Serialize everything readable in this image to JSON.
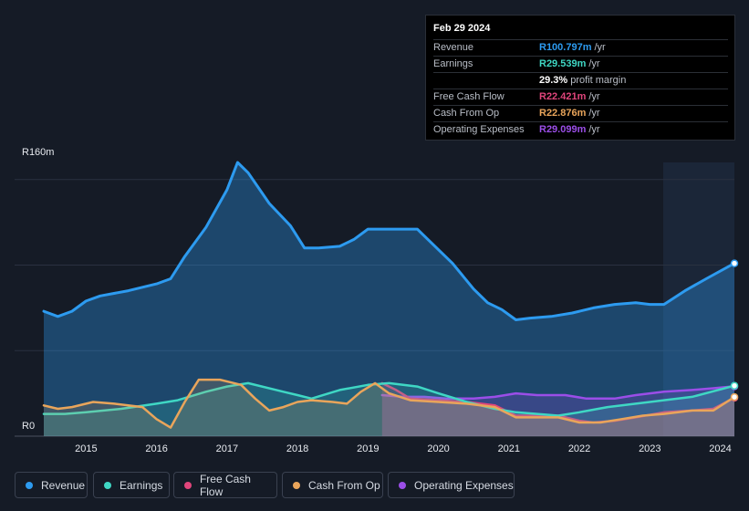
{
  "chart_data": {
    "type": "area",
    "y_axis": {
      "top_label": "R160m",
      "bottom_label": "R0",
      "ylim": [
        0,
        160
      ]
    },
    "x_axis": {
      "tick_labels": [
        "2015",
        "2016",
        "2017",
        "2018",
        "2019",
        "2020",
        "2021",
        "2022",
        "2023",
        "2024"
      ],
      "xlim": [
        2014.4,
        2024.2
      ]
    },
    "series": [
      {
        "key": "revenue",
        "name": "Revenue",
        "color": "#2d9bf0",
        "points": [
          [
            2014.4,
            73
          ],
          [
            2014.6,
            70
          ],
          [
            2014.8,
            73
          ],
          [
            2015.0,
            79
          ],
          [
            2015.2,
            82
          ],
          [
            2015.6,
            85
          ],
          [
            2016.0,
            89
          ],
          [
            2016.2,
            92
          ],
          [
            2016.4,
            105
          ],
          [
            2016.7,
            122
          ],
          [
            2017.0,
            144
          ],
          [
            2017.15,
            160
          ],
          [
            2017.3,
            154
          ],
          [
            2017.6,
            136
          ],
          [
            2017.9,
            123
          ],
          [
            2018.1,
            110
          ],
          [
            2018.3,
            110
          ],
          [
            2018.6,
            111
          ],
          [
            2018.8,
            115
          ],
          [
            2019.0,
            121
          ],
          [
            2019.2,
            121
          ],
          [
            2019.5,
            121
          ],
          [
            2019.7,
            121
          ],
          [
            2019.9,
            113
          ],
          [
            2020.2,
            101
          ],
          [
            2020.5,
            86
          ],
          [
            2020.7,
            78
          ],
          [
            2020.9,
            74
          ],
          [
            2021.1,
            68
          ],
          [
            2021.3,
            69
          ],
          [
            2021.6,
            70
          ],
          [
            2021.9,
            72
          ],
          [
            2022.2,
            75
          ],
          [
            2022.5,
            77
          ],
          [
            2022.8,
            78
          ],
          [
            2023.0,
            77
          ],
          [
            2023.2,
            77
          ],
          [
            2023.5,
            85
          ],
          [
            2023.8,
            92
          ],
          [
            2024.2,
            101
          ]
        ]
      },
      {
        "key": "earnings",
        "name": "Earnings",
        "color": "#3fd7c4",
        "points": [
          [
            2014.4,
            13
          ],
          [
            2014.7,
            13
          ],
          [
            2015.0,
            14
          ],
          [
            2015.5,
            16
          ],
          [
            2016.0,
            19
          ],
          [
            2016.3,
            21
          ],
          [
            2016.7,
            26
          ],
          [
            2017.0,
            29
          ],
          [
            2017.3,
            31
          ],
          [
            2017.8,
            26
          ],
          [
            2018.0,
            24
          ],
          [
            2018.2,
            22
          ],
          [
            2018.6,
            27
          ],
          [
            2019.0,
            30
          ],
          [
            2019.3,
            31
          ],
          [
            2019.7,
            29
          ],
          [
            2020.0,
            25
          ],
          [
            2020.4,
            20
          ],
          [
            2020.8,
            16
          ],
          [
            2021.1,
            14
          ],
          [
            2021.4,
            13
          ],
          [
            2021.7,
            12
          ],
          [
            2022.0,
            14
          ],
          [
            2022.4,
            17
          ],
          [
            2022.8,
            19
          ],
          [
            2023.2,
            21
          ],
          [
            2023.6,
            23
          ],
          [
            2024.2,
            29.5
          ]
        ]
      },
      {
        "key": "fcf",
        "name": "Free Cash Flow",
        "color": "#e0457b",
        "points": [
          [
            2019.2,
            31
          ],
          [
            2019.4,
            27
          ],
          [
            2019.6,
            22
          ],
          [
            2020.0,
            21
          ],
          [
            2020.4,
            20
          ],
          [
            2020.8,
            18
          ],
          [
            2021.1,
            12
          ],
          [
            2021.4,
            12
          ],
          [
            2021.7,
            12
          ],
          [
            2022.0,
            9
          ],
          [
            2022.2,
            8
          ],
          [
            2022.5,
            9
          ],
          [
            2022.8,
            11
          ],
          [
            2023.2,
            14
          ],
          [
            2023.6,
            15
          ],
          [
            2023.9,
            16
          ],
          [
            2024.2,
            22.4
          ]
        ]
      },
      {
        "key": "cfo",
        "name": "Cash From Op",
        "color": "#e9a55b",
        "points": [
          [
            2014.4,
            18
          ],
          [
            2014.6,
            16
          ],
          [
            2014.8,
            17
          ],
          [
            2015.1,
            20
          ],
          [
            2015.4,
            19
          ],
          [
            2015.8,
            17
          ],
          [
            2016.0,
            10
          ],
          [
            2016.2,
            5
          ],
          [
            2016.4,
            20
          ],
          [
            2016.6,
            33
          ],
          [
            2016.9,
            33
          ],
          [
            2017.2,
            30
          ],
          [
            2017.4,
            22
          ],
          [
            2017.6,
            15
          ],
          [
            2017.8,
            17
          ],
          [
            2018.0,
            20
          ],
          [
            2018.2,
            21
          ],
          [
            2018.5,
            20
          ],
          [
            2018.7,
            19
          ],
          [
            2018.9,
            26
          ],
          [
            2019.1,
            31
          ],
          [
            2019.3,
            25
          ],
          [
            2019.6,
            21
          ],
          [
            2020.0,
            20
          ],
          [
            2020.4,
            19
          ],
          [
            2020.8,
            17
          ],
          [
            2021.1,
            11
          ],
          [
            2021.4,
            11
          ],
          [
            2021.7,
            11
          ],
          [
            2022.0,
            8
          ],
          [
            2022.3,
            8
          ],
          [
            2022.6,
            10
          ],
          [
            2022.9,
            12
          ],
          [
            2023.2,
            13
          ],
          [
            2023.6,
            15
          ],
          [
            2023.9,
            15
          ],
          [
            2024.2,
            22.9
          ]
        ]
      },
      {
        "key": "opex",
        "name": "Operating Expenses",
        "color": "#9b4ee8",
        "points": [
          [
            2019.2,
            24
          ],
          [
            2019.5,
            23
          ],
          [
            2019.8,
            23
          ],
          [
            2020.1,
            22
          ],
          [
            2020.5,
            22
          ],
          [
            2020.8,
            23
          ],
          [
            2021.1,
            25
          ],
          [
            2021.4,
            24
          ],
          [
            2021.8,
            24
          ],
          [
            2022.1,
            22
          ],
          [
            2022.5,
            22
          ],
          [
            2022.8,
            24
          ],
          [
            2023.2,
            26
          ],
          [
            2023.6,
            27
          ],
          [
            2023.9,
            28
          ],
          [
            2024.2,
            29.1
          ]
        ]
      }
    ]
  },
  "tooltip": {
    "date": "Feb 29 2024",
    "rows": [
      {
        "label": "Revenue",
        "value": "R100.797m",
        "unit": "/yr",
        "color": "#2d9bf0"
      },
      {
        "label": "Earnings",
        "value": "R29.539m",
        "unit": "/yr",
        "color": "#3fd7c4"
      },
      {
        "label": "",
        "value": "29.3%",
        "unit": "profit margin",
        "color": "#ffffff"
      },
      {
        "label": "Free Cash Flow",
        "value": "R22.421m",
        "unit": "/yr",
        "color": "#e0457b"
      },
      {
        "label": "Cash From Op",
        "value": "R22.876m",
        "unit": "/yr",
        "color": "#e9a55b"
      },
      {
        "label": "Operating Expenses",
        "value": "R29.099m",
        "unit": "/yr",
        "color": "#9b4ee8"
      }
    ]
  },
  "legend": [
    {
      "key": "revenue",
      "label": "Revenue",
      "color": "#2d9bf0"
    },
    {
      "key": "earnings",
      "label": "Earnings",
      "color": "#3fd7c4"
    },
    {
      "key": "fcf",
      "label": "Free Cash Flow",
      "color": "#e0457b"
    },
    {
      "key": "cfo",
      "label": "Cash From Op",
      "color": "#e9a55b"
    },
    {
      "key": "opex",
      "label": "Operating Expenses",
      "color": "#9b4ee8"
    }
  ]
}
